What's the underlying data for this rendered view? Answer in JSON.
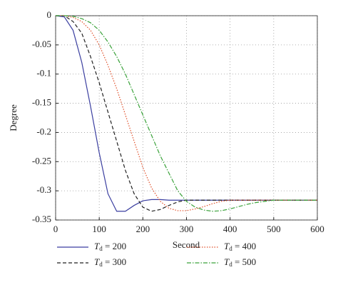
{
  "chart_data": {
    "type": "line",
    "xlabel": "Second",
    "ylabel": "Degree",
    "x": [
      0,
      20,
      40,
      60,
      80,
      100,
      120,
      140,
      160,
      180,
      200,
      220,
      240,
      260,
      280,
      300,
      320,
      340,
      360,
      380,
      400,
      420,
      440,
      460,
      480,
      500,
      520,
      540,
      560,
      580,
      600
    ],
    "series": [
      {
        "name": "Td = 200",
        "color": "#3b3fa0",
        "style": "solid",
        "values": [
          0,
          -0.002,
          -0.025,
          -0.08,
          -0.155,
          -0.235,
          -0.305,
          -0.335,
          -0.335,
          -0.325,
          -0.317,
          -0.315,
          -0.315,
          -0.316,
          -0.316,
          -0.316,
          -0.316,
          -0.316,
          -0.316,
          -0.316,
          -0.316,
          -0.316,
          -0.316,
          -0.316,
          -0.316,
          -0.316,
          -0.316,
          -0.316,
          -0.316,
          -0.316,
          -0.316
        ]
      },
      {
        "name": "Td = 300",
        "color": "#222222",
        "style": "dashed",
        "values": [
          0,
          0,
          -0.01,
          -0.03,
          -0.07,
          -0.115,
          -0.165,
          -0.215,
          -0.265,
          -0.305,
          -0.328,
          -0.335,
          -0.332,
          -0.325,
          -0.319,
          -0.316,
          -0.316,
          -0.316,
          -0.316,
          -0.316,
          -0.316,
          -0.316,
          -0.316,
          -0.316,
          -0.316,
          -0.316,
          -0.316,
          -0.316,
          -0.316,
          -0.316,
          -0.316
        ]
      },
      {
        "name": "Td = 400",
        "color": "#e0502a",
        "style": "dotted",
        "values": [
          0,
          0,
          -0.003,
          -0.01,
          -0.025,
          -0.05,
          -0.085,
          -0.125,
          -0.17,
          -0.215,
          -0.26,
          -0.295,
          -0.318,
          -0.33,
          -0.334,
          -0.334,
          -0.331,
          -0.327,
          -0.322,
          -0.318,
          -0.316,
          -0.316,
          -0.316,
          -0.316,
          -0.316,
          -0.316,
          -0.316,
          -0.316,
          -0.316,
          -0.316,
          -0.316
        ]
      },
      {
        "name": "Td = 500",
        "color": "#3aa23a",
        "style": "dashdot",
        "values": [
          0,
          0,
          -0.001,
          -0.005,
          -0.012,
          -0.025,
          -0.045,
          -0.07,
          -0.1,
          -0.135,
          -0.17,
          -0.205,
          -0.24,
          -0.27,
          -0.3,
          -0.318,
          -0.328,
          -0.333,
          -0.335,
          -0.334,
          -0.331,
          -0.327,
          -0.323,
          -0.32,
          -0.318,
          -0.316,
          -0.316,
          -0.316,
          -0.316,
          -0.316,
          -0.316
        ]
      }
    ],
    "xlim": [
      0,
      600
    ],
    "xticks": [
      0,
      100,
      200,
      300,
      400,
      500,
      600
    ],
    "ylim": [
      -0.35,
      0
    ],
    "yticks": [
      0,
      -0.05,
      -0.1,
      -0.15,
      -0.2,
      -0.25,
      -0.3,
      -0.35
    ],
    "grid": true
  }
}
